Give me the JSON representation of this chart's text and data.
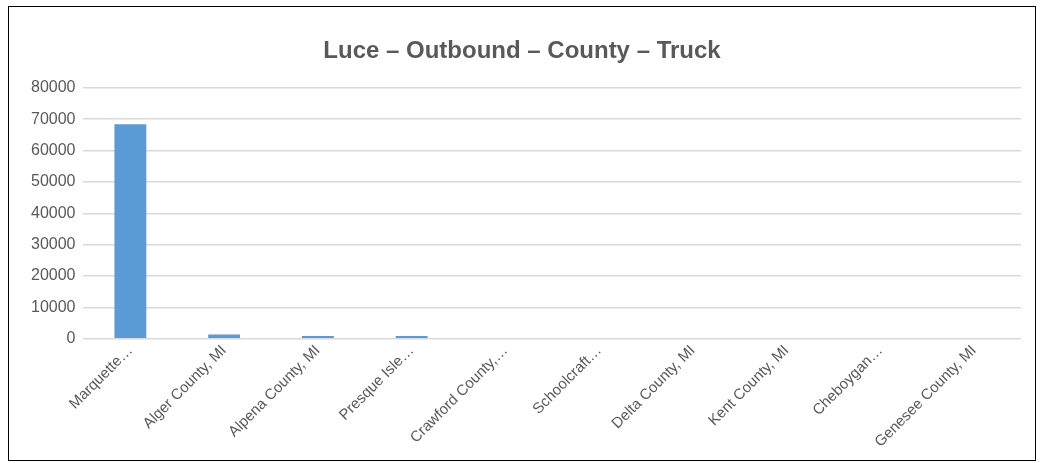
{
  "chart_data": {
    "type": "bar",
    "title": "Luce – Outbound – County – Truck",
    "categories": [
      "Marquette…",
      "Alger County, MI",
      "Alpena County, MI",
      "Presque Isle…",
      "Crawford County,…",
      "Schoolcraft…",
      "Delta County, MI",
      "Kent County, MI",
      "Cheboygan…",
      "Genesee County, MI"
    ],
    "values": [
      68400,
      1400,
      900,
      900,
      0,
      0,
      0,
      0,
      0,
      0
    ],
    "color": "#5b9bd5",
    "ylim": [
      0,
      80000
    ],
    "yticks": [
      0,
      10000,
      20000,
      30000,
      40000,
      50000,
      60000,
      70000,
      80000
    ],
    "grid": "y",
    "legend": false
  }
}
